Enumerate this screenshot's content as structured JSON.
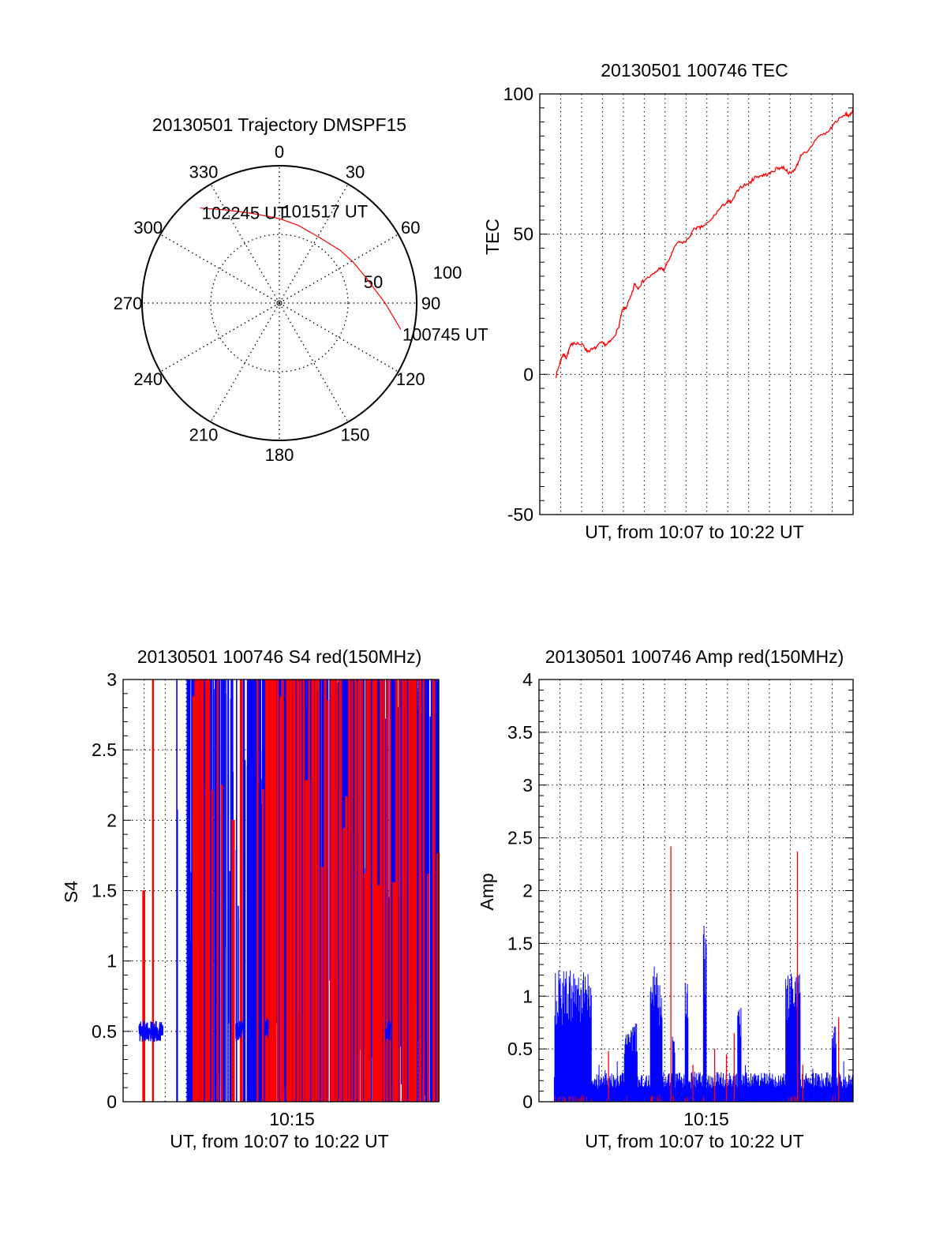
{
  "colors": {
    "red": "#ff0000",
    "blue": "#0000ff",
    "axis": "#000000"
  },
  "chart_data": [
    {
      "type": "polar",
      "title": "20130501 Trajectory DMSPF15",
      "azimuth_labels": [
        "0",
        "30",
        "60",
        "90",
        "120",
        "150",
        "180",
        "210",
        "240",
        "270",
        "300",
        "330"
      ],
      "radial_labels": [
        "50",
        "100"
      ],
      "rmax": 100,
      "series": [
        {
          "name": "trajectory",
          "color": "#ff0000",
          "points": [
            [
              102.3,
              90.5
            ],
            [
              90,
              77
            ],
            [
              72.9,
              65.4
            ],
            [
              61,
              61.5
            ],
            [
              49,
              58.6
            ],
            [
              31,
              56
            ],
            [
              13.3,
              58.3
            ],
            [
              0,
              61.5
            ],
            [
              343.6,
              68
            ],
            [
              330.4,
              77.9
            ],
            [
              320.2,
              90.1
            ]
          ]
        }
      ],
      "annotations": {
        "start": "100745 UT",
        "middle": "101517 UT",
        "end": "102245 UT"
      }
    },
    {
      "type": "line",
      "title": "20130501 100746 TEC",
      "xlabel": "UT, from 10:07 to 10:22 UT",
      "ylabel": "TEC",
      "xlim_minutes": [
        7,
        22
      ],
      "ylim": [
        -50,
        100
      ],
      "yticks": [
        "100",
        "50",
        "0",
        "-50"
      ],
      "ytick_values": [
        100,
        50,
        0,
        -50
      ],
      "grid": true,
      "series": [
        {
          "name": "TEC",
          "color": "#ff0000",
          "x_minutes": [
            7.77,
            7.96,
            8.11,
            8.27,
            8.46,
            8.64,
            9.08,
            9.27,
            9.58,
            9.95,
            10.2,
            10.45,
            10.76,
            10.95,
            11.13,
            11.38,
            11.55,
            11.69,
            12.0,
            12.44,
            12.75,
            12.94,
            13.19,
            13.56,
            14.0,
            14.43,
            14.68,
            15.12,
            15.55,
            15.99,
            16.18,
            16.55,
            17.05,
            17.3,
            17.67,
            17.98,
            18.36,
            18.67,
            19.0,
            19.29,
            19.54,
            19.79,
            20.29,
            20.79,
            21.16,
            21.66,
            21.84,
            22.0
          ],
          "y": [
            -0.7,
            4,
            7.3,
            6,
            10,
            11.5,
            10.3,
            8.3,
            9,
            11.2,
            10.5,
            12.3,
            16.3,
            22.8,
            23.8,
            27.9,
            32.4,
            30.8,
            33.7,
            35.6,
            37.9,
            37.2,
            40.9,
            46.8,
            47.3,
            52.2,
            52.2,
            54.3,
            58.5,
            61.8,
            61.2,
            66.6,
            68.2,
            70.3,
            71.0,
            71.4,
            73.5,
            73.8,
            71.4,
            74.0,
            78.8,
            78.8,
            84.7,
            86.3,
            90.1,
            92.7,
            92.2,
            94.5
          ]
        }
      ]
    },
    {
      "type": "line",
      "title": "20130501 100746 S4 red(150MHz)",
      "xlabel": "UT, from 10:07 to 10:22 UT",
      "ylabel": "S4",
      "xtick_label": "10:15",
      "xtick_value": 15,
      "xlim_minutes": [
        7,
        22
      ],
      "ylim": [
        0,
        3
      ],
      "yticks": [
        "0",
        "0.5",
        "1",
        "1.5",
        "2",
        "2.5",
        "3"
      ],
      "ytick_values": [
        0,
        0.5,
        1,
        1.5,
        2,
        2.5,
        3
      ],
      "grid": true,
      "blue_quiet_segments": [
        [
          7.75,
          8.9,
          0.5
        ],
        [
          12.35,
          12.75,
          0.5
        ],
        [
          13.75,
          13.9,
          0.52
        ],
        [
          19.45,
          19.7,
          0.5
        ]
      ],
      "blue_dense_segments": [
        [
          9.4,
          9.7,
          8
        ],
        [
          10.05,
          10.9,
          120
        ],
        [
          10.9,
          12.85,
          22
        ],
        [
          12.9,
          13.95,
          100
        ],
        [
          13.95,
          22,
          60
        ]
      ],
      "red_line_minutes": [
        7.97,
        8.43,
        10.35,
        10.45,
        10.55,
        10.7,
        10.8,
        10.95,
        11.1,
        11.25,
        11.5,
        11.7,
        12.2,
        12.6,
        13.4,
        13.65,
        13.8,
        13.9,
        14.0,
        14.1,
        14.2,
        14.35,
        14.5,
        14.6,
        14.8,
        14.95,
        15.1,
        15.3,
        15.45,
        15.6,
        15.7,
        15.85,
        16.0,
        16.15,
        16.3,
        16.45,
        16.6,
        16.75,
        16.9,
        17.0,
        17.15,
        17.3,
        17.5,
        17.6,
        17.75,
        17.9,
        18.05,
        18.2,
        18.35,
        18.5,
        18.6,
        18.75,
        18.9,
        19.0,
        19.1,
        19.25,
        19.4,
        19.55,
        19.7,
        19.85,
        20.0,
        20.15,
        20.3,
        20.45,
        20.6,
        20.75,
        20.9,
        21.1,
        21.3,
        21.5,
        21.75,
        21.95
      ]
    },
    {
      "type": "bar",
      "title": "20130501 100746 Amp red(150MHz)",
      "xlabel": "UT, from 10:07 to 10:22 UT",
      "ylabel": "Amp",
      "xtick_label": "10:15",
      "xtick_value": 15,
      "xlim_minutes": [
        7,
        22
      ],
      "ylim": [
        0,
        4
      ],
      "yticks": [
        "0",
        "0.5",
        "1",
        "1.5",
        "2",
        "2.5",
        "3",
        "3.5",
        "4"
      ],
      "ytick_values": [
        0,
        0.5,
        1,
        1.5,
        2,
        2.5,
        3,
        3.5,
        4
      ],
      "grid": true,
      "blue_baseline": [
        7.73,
        22,
        0.28
      ],
      "blue_bursts": [
        [
          7.73,
          9.5,
          1.25
        ],
        [
          11.06,
          11.7,
          0.75
        ],
        [
          12.3,
          12.9,
          1.3
        ],
        [
          13.35,
          13.5,
          0.62
        ],
        [
          13.98,
          14.14,
          1.18
        ],
        [
          14.85,
          15.01,
          1.8
        ],
        [
          16.47,
          16.65,
          0.9
        ],
        [
          18.76,
          19.48,
          1.22
        ],
        [
          21.0,
          21.2,
          0.75
        ]
      ],
      "red_spikes": [
        [
          13.3,
          2.42
        ],
        [
          19.34,
          2.37
        ],
        [
          21.31,
          0.8
        ],
        [
          16.32,
          0.65
        ],
        [
          10.32,
          0.48
        ],
        [
          15.39,
          0.5
        ],
        [
          15.95,
          0.45
        ],
        [
          14.35,
          0.35
        ],
        [
          19.6,
          0.35
        ]
      ]
    }
  ]
}
